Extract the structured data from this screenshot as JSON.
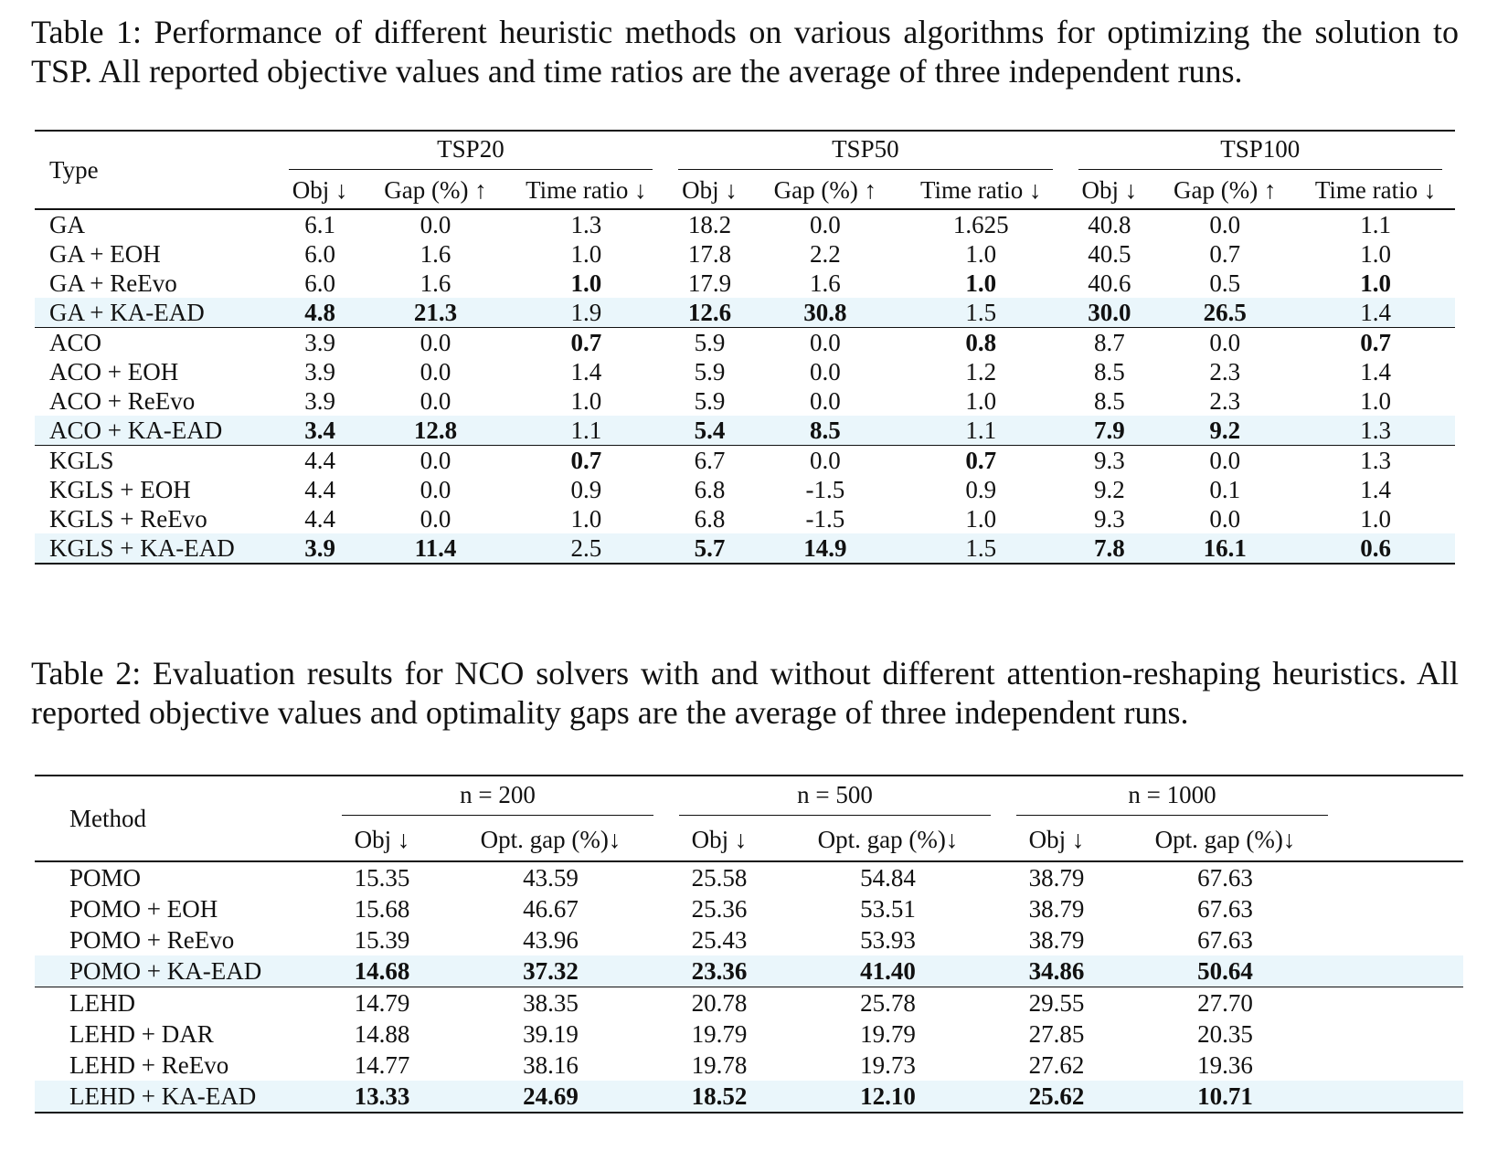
{
  "table1": {
    "caption": "Table 1: Performance of different heuristic methods on various algorithms for optimizing the solution to TSP. All reported objective values and time ratios are the average of three independent runs.",
    "type_header": "Type",
    "groups": [
      "TSP20",
      "TSP50",
      "TSP100"
    ],
    "sub_headers": [
      "Obj ↓",
      "Gap (%) ↑",
      "Time ratio ↓"
    ],
    "sections": [
      [
        {
          "label": "GA",
          "highlight": false,
          "cells": [
            [
              "6.1",
              0
            ],
            [
              "0.0",
              0
            ],
            [
              "1.3",
              0
            ],
            [
              "18.2",
              0
            ],
            [
              "0.0",
              0
            ],
            [
              "1.625",
              0
            ],
            [
              "40.8",
              0
            ],
            [
              "0.0",
              0
            ],
            [
              "1.1",
              0
            ]
          ]
        },
        {
          "label": "GA + EOH",
          "highlight": false,
          "cells": [
            [
              "6.0",
              0
            ],
            [
              "1.6",
              0
            ],
            [
              "1.0",
              0
            ],
            [
              "17.8",
              0
            ],
            [
              "2.2",
              0
            ],
            [
              "1.0",
              0
            ],
            [
              "40.5",
              0
            ],
            [
              "0.7",
              0
            ],
            [
              "1.0",
              0
            ]
          ]
        },
        {
          "label": "GA + ReEvo",
          "highlight": false,
          "cells": [
            [
              "6.0",
              0
            ],
            [
              "1.6",
              0
            ],
            [
              "1.0",
              1
            ],
            [
              "17.9",
              0
            ],
            [
              "1.6",
              0
            ],
            [
              "1.0",
              1
            ],
            [
              "40.6",
              0
            ],
            [
              "0.5",
              0
            ],
            [
              "1.0",
              1
            ]
          ]
        },
        {
          "label": "GA + KA-EAD",
          "highlight": true,
          "cells": [
            [
              "4.8",
              1
            ],
            [
              "21.3",
              1
            ],
            [
              "1.9",
              0
            ],
            [
              "12.6",
              1
            ],
            [
              "30.8",
              1
            ],
            [
              "1.5",
              0
            ],
            [
              "30.0",
              1
            ],
            [
              "26.5",
              1
            ],
            [
              "1.4",
              0
            ]
          ]
        }
      ],
      [
        {
          "label": "ACO",
          "highlight": false,
          "cells": [
            [
              "3.9",
              0
            ],
            [
              "0.0",
              0
            ],
            [
              "0.7",
              1
            ],
            [
              "5.9",
              0
            ],
            [
              "0.0",
              0
            ],
            [
              "0.8",
              1
            ],
            [
              "8.7",
              0
            ],
            [
              "0.0",
              0
            ],
            [
              "0.7",
              1
            ]
          ]
        },
        {
          "label": "ACO + EOH",
          "highlight": false,
          "cells": [
            [
              "3.9",
              0
            ],
            [
              "0.0",
              0
            ],
            [
              "1.4",
              0
            ],
            [
              "5.9",
              0
            ],
            [
              "0.0",
              0
            ],
            [
              "1.2",
              0
            ],
            [
              "8.5",
              0
            ],
            [
              "2.3",
              0
            ],
            [
              "1.4",
              0
            ]
          ]
        },
        {
          "label": "ACO + ReEvo",
          "highlight": false,
          "cells": [
            [
              "3.9",
              0
            ],
            [
              "0.0",
              0
            ],
            [
              "1.0",
              0
            ],
            [
              "5.9",
              0
            ],
            [
              "0.0",
              0
            ],
            [
              "1.0",
              0
            ],
            [
              "8.5",
              0
            ],
            [
              "2.3",
              0
            ],
            [
              "1.0",
              0
            ]
          ]
        },
        {
          "label": "ACO + KA-EAD",
          "highlight": true,
          "cells": [
            [
              "3.4",
              1
            ],
            [
              "12.8",
              1
            ],
            [
              "1.1",
              0
            ],
            [
              "5.4",
              1
            ],
            [
              "8.5",
              1
            ],
            [
              "1.1",
              0
            ],
            [
              "7.9",
              1
            ],
            [
              "9.2",
              1
            ],
            [
              "1.3",
              0
            ]
          ]
        }
      ],
      [
        {
          "label": "KGLS",
          "highlight": false,
          "cells": [
            [
              "4.4",
              0
            ],
            [
              "0.0",
              0
            ],
            [
              "0.7",
              1
            ],
            [
              "6.7",
              0
            ],
            [
              "0.0",
              0
            ],
            [
              "0.7",
              1
            ],
            [
              "9.3",
              0
            ],
            [
              "0.0",
              0
            ],
            [
              "1.3",
              0
            ]
          ]
        },
        {
          "label": "KGLS + EOH",
          "highlight": false,
          "cells": [
            [
              "4.4",
              0
            ],
            [
              "0.0",
              0
            ],
            [
              "0.9",
              0
            ],
            [
              "6.8",
              0
            ],
            [
              "-1.5",
              0
            ],
            [
              "0.9",
              0
            ],
            [
              "9.2",
              0
            ],
            [
              "0.1",
              0
            ],
            [
              "1.4",
              0
            ]
          ]
        },
        {
          "label": "KGLS + ReEvo",
          "highlight": false,
          "cells": [
            [
              "4.4",
              0
            ],
            [
              "0.0",
              0
            ],
            [
              "1.0",
              0
            ],
            [
              "6.8",
              0
            ],
            [
              "-1.5",
              0
            ],
            [
              "1.0",
              0
            ],
            [
              "9.3",
              0
            ],
            [
              "0.0",
              0
            ],
            [
              "1.0",
              0
            ]
          ]
        },
        {
          "label": "KGLS + KA-EAD",
          "highlight": true,
          "cells": [
            [
              "3.9",
              1
            ],
            [
              "11.4",
              1
            ],
            [
              "2.5",
              0
            ],
            [
              "5.7",
              1
            ],
            [
              "14.9",
              1
            ],
            [
              "1.5",
              0
            ],
            [
              "7.8",
              1
            ],
            [
              "16.1",
              1
            ],
            [
              "0.6",
              1
            ]
          ]
        }
      ]
    ]
  },
  "table2": {
    "caption": "Table 2: Evaluation results for NCO solvers with and without different attention-reshaping heuristics. All reported objective values and optimality gaps are the average of three independent runs.",
    "method_header": "Method",
    "groups": [
      "n = 200",
      "n = 500",
      "n = 1000"
    ],
    "sub_headers": [
      "Obj ↓",
      "Opt. gap (%)↓"
    ],
    "sections": [
      [
        {
          "label": "POMO",
          "highlight": false,
          "cells": [
            [
              "15.35",
              0
            ],
            [
              "43.59",
              0
            ],
            [
              "25.58",
              0
            ],
            [
              "54.84",
              0
            ],
            [
              "38.79",
              0
            ],
            [
              "67.63",
              0
            ]
          ]
        },
        {
          "label": "POMO + EOH",
          "highlight": false,
          "cells": [
            [
              "15.68",
              0
            ],
            [
              "46.67",
              0
            ],
            [
              "25.36",
              0
            ],
            [
              "53.51",
              0
            ],
            [
              "38.79",
              0
            ],
            [
              "67.63",
              0
            ]
          ]
        },
        {
          "label": "POMO + ReEvo",
          "highlight": false,
          "cells": [
            [
              "15.39",
              0
            ],
            [
              "43.96",
              0
            ],
            [
              "25.43",
              0
            ],
            [
              "53.93",
              0
            ],
            [
              "38.79",
              0
            ],
            [
              "67.63",
              0
            ]
          ]
        },
        {
          "label": "POMO + KA-EAD",
          "highlight": true,
          "cells": [
            [
              "14.68",
              1
            ],
            [
              "37.32",
              1
            ],
            [
              "23.36",
              1
            ],
            [
              "41.40",
              1
            ],
            [
              "34.86",
              1
            ],
            [
              "50.64",
              1
            ]
          ]
        }
      ],
      [
        {
          "label": "LEHD",
          "highlight": false,
          "cells": [
            [
              "14.79",
              0
            ],
            [
              "38.35",
              0
            ],
            [
              "20.78",
              0
            ],
            [
              "25.78",
              0
            ],
            [
              "29.55",
              0
            ],
            [
              "27.70",
              0
            ]
          ]
        },
        {
          "label": "LEHD + DAR",
          "highlight": false,
          "cells": [
            [
              "14.88",
              0
            ],
            [
              "39.19",
              0
            ],
            [
              "19.79",
              0
            ],
            [
              "19.79",
              0
            ],
            [
              "27.85",
              0
            ],
            [
              "20.35",
              0
            ]
          ]
        },
        {
          "label": "LEHD + ReEvo",
          "highlight": false,
          "cells": [
            [
              "14.77",
              0
            ],
            [
              "38.16",
              0
            ],
            [
              "19.78",
              0
            ],
            [
              "19.73",
              0
            ],
            [
              "27.62",
              0
            ],
            [
              "19.36",
              0
            ]
          ]
        },
        {
          "label": "LEHD + KA-EAD",
          "highlight": true,
          "cells": [
            [
              "13.33",
              1
            ],
            [
              "24.69",
              1
            ],
            [
              "18.52",
              1
            ],
            [
              "12.10",
              1
            ],
            [
              "25.62",
              1
            ],
            [
              "10.71",
              1
            ]
          ]
        }
      ]
    ]
  }
}
